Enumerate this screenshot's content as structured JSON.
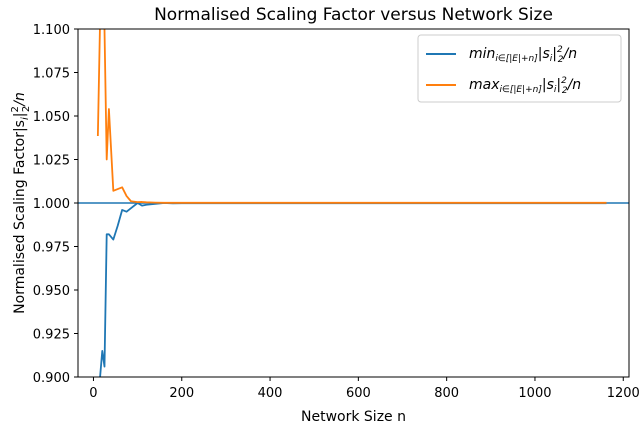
{
  "chart_data": {
    "type": "line",
    "title": "Normalised Scaling Factor versus Network Size",
    "xlabel": "Network Size n",
    "ylabel": "Normalised Scaling Factor|s",
    "ylabel_sub": "i",
    "ylabel_sup": "2",
    "ylabel_sub2": "2",
    "ylabel_tail": "/n",
    "xlim": [
      -35,
      1213
    ],
    "ylim": [
      0.9,
      1.1
    ],
    "xticks": [
      0,
      200,
      400,
      600,
      800,
      1000,
      1200
    ],
    "xtick_labels": [
      "0",
      "200",
      "400",
      "600",
      "800",
      "1000",
      "1200"
    ],
    "yticks": [
      0.9,
      0.925,
      0.95,
      0.975,
      1.0,
      1.025,
      1.05,
      1.075,
      1.1
    ],
    "ytick_labels": [
      "0.900",
      "0.925",
      "0.950",
      "0.975",
      "1.000",
      "1.025",
      "1.050",
      "1.075",
      "1.100"
    ],
    "hline": 1.0,
    "hline_color": "#1f77b4",
    "legend_position": "top-right",
    "grid": false,
    "series": [
      {
        "name_main": "min",
        "name_sub": "i∈[|E|+n]",
        "name_tail": "|s",
        "name_tail_sub": "i",
        "name_tail2": "|",
        "name_sup": "2",
        "name_sub2": "2",
        "name_end": "/n",
        "color": "#1f77b4",
        "x": [
          10,
          15,
          20,
          25,
          30,
          35,
          45,
          55,
          65,
          75,
          85,
          100,
          110,
          120,
          140,
          160,
          180,
          200,
          250,
          300,
          400,
          500,
          600,
          700,
          800,
          900,
          1000,
          1100,
          1160
        ],
        "y": [
          0.895,
          0.9,
          0.915,
          0.906,
          0.982,
          0.982,
          0.979,
          0.987,
          0.996,
          0.995,
          0.997,
          1.0,
          0.9985,
          0.999,
          0.9995,
          1.0,
          0.9998,
          0.9999,
          0.9999,
          0.9999,
          0.9999,
          0.9999,
          0.9999,
          0.9999,
          0.9999,
          0.9999,
          0.9999,
          0.9999,
          0.9999
        ]
      },
      {
        "name_main": "max",
        "name_sub": "i∈[|E|+n]",
        "name_tail": "|s",
        "name_tail_sub": "i",
        "name_tail2": "|",
        "name_sup": "2",
        "name_sub2": "2",
        "name_end": "/n",
        "color": "#ff7f0e",
        "x": [
          10,
          15,
          20,
          25,
          30,
          35,
          45,
          55,
          65,
          75,
          85,
          100,
          110,
          120,
          140,
          160,
          180,
          200,
          250,
          300,
          400,
          500,
          600,
          700,
          800,
          900,
          1000,
          1100,
          1160
        ],
        "y": [
          1.039,
          1.105,
          1.12,
          1.1,
          1.025,
          1.054,
          1.007,
          1.008,
          1.009,
          1.004,
          1.001,
          1.0005,
          1.0006,
          1.0004,
          1.0002,
          1.0001,
          1.0001,
          1.0001,
          1.0001,
          1.0001,
          1.0001,
          1.0001,
          1.0001,
          1.0001,
          1.0001,
          1.0001,
          1.0001,
          1.0001,
          1.0001
        ]
      }
    ]
  }
}
